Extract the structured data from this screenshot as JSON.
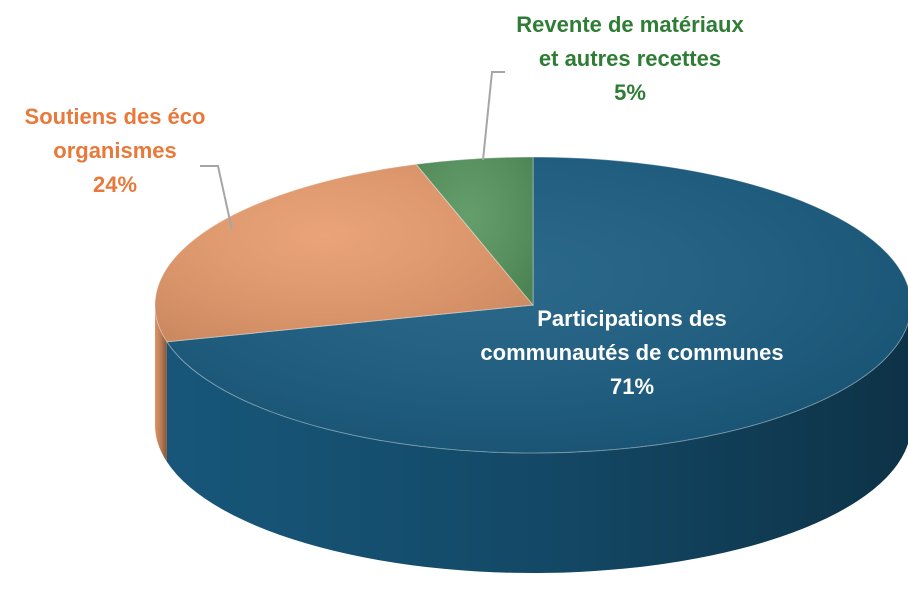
{
  "chart_data": {
    "type": "pie",
    "categories": [
      "Participations des communautés de communes",
      "Soutiens des éco organismes",
      "Revente de matériaux et autres recettes"
    ],
    "values": [
      71,
      24,
      5
    ],
    "value_labels": [
      "71%",
      "24%",
      "5%"
    ],
    "colors": [
      "#185b80",
      "#e89b6c",
      "#56955e"
    ],
    "label_colors": [
      "#ffffff",
      "#e8793a",
      "#2f7d34"
    ]
  }
}
